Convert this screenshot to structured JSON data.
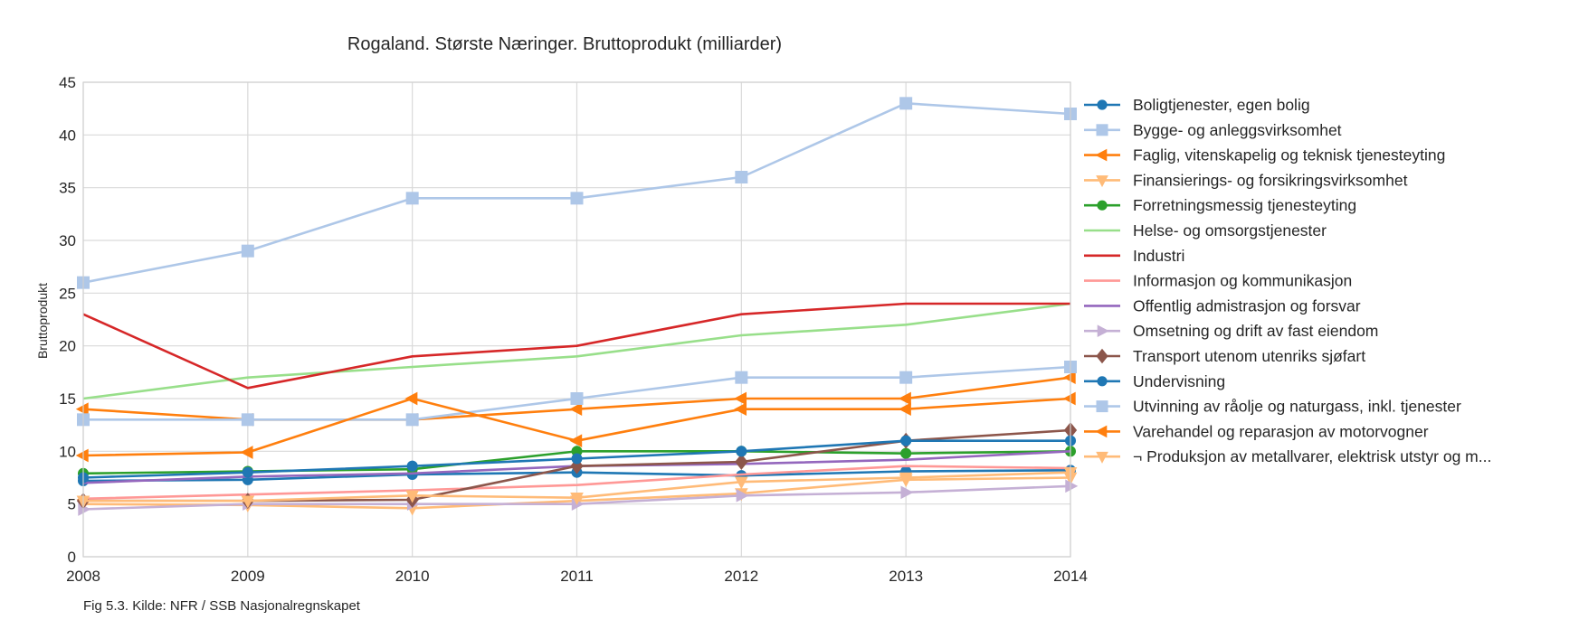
{
  "chart_data": {
    "type": "line",
    "title": "Rogaland. Største Næringer. Bruttoprodukt (milliarder)",
    "xlabel": "",
    "ylabel": "Bruttoprodukt",
    "caption": "Fig 5.3. Kilde: NFR / SSB Nasjonalregnskapet",
    "x": [
      2008,
      2009,
      2010,
      2011,
      2012,
      2013,
      2014
    ],
    "x_ticks": [
      "2008",
      "2009",
      "2010",
      "2011",
      "2012",
      "2013",
      "2014"
    ],
    "xlim": [
      2008,
      2014
    ],
    "ylim": [
      0,
      45
    ],
    "y_ticks": [
      0,
      5,
      10,
      15,
      20,
      25,
      30,
      35,
      40,
      45
    ],
    "grid": true,
    "legend_position": "right",
    "series": [
      {
        "name": "Boligtjenester, egen bolig",
        "color": "#1f77b4",
        "marker": "circle",
        "values": [
          7.2,
          7.3,
          7.8,
          8.0,
          7.7,
          8.1,
          8.2
        ]
      },
      {
        "name": "Bygge- og anleggsvirksomhet",
        "color": "#aec7e8",
        "marker": "square",
        "values": [
          26,
          29,
          34,
          34,
          36,
          43,
          42
        ]
      },
      {
        "name": "Faglig, vitenskapelig og teknisk tjenesteyting",
        "color": "#ff7f0e",
        "marker": "triangle-left",
        "values": [
          14,
          13,
          13,
          14,
          15,
          15,
          17
        ]
      },
      {
        "name": "Finansierings- og forsikringsvirksomhet",
        "color": "#ffbb78",
        "marker": "triangle-down",
        "values": [
          5.0,
          4.9,
          4.6,
          5.3,
          6.0,
          7.3,
          7.5
        ]
      },
      {
        "name": "Forretningsmessig tjenesteyting",
        "color": "#2ca02c",
        "marker": "circle",
        "values": [
          7.9,
          8.1,
          8.3,
          10,
          10,
          9.8,
          10
        ]
      },
      {
        "name": "Helse- og omsorgstjenester",
        "color": "#98df8a",
        "marker": "none",
        "values": [
          15,
          17,
          18,
          19,
          21,
          22,
          24
        ]
      },
      {
        "name": "Industri",
        "color": "#d62728",
        "marker": "none",
        "values": [
          23,
          16,
          19,
          20,
          23,
          24,
          24
        ]
      },
      {
        "name": "Informasjon og kommunikasjon",
        "color": "#ff9896",
        "marker": "none",
        "values": [
          5.5,
          5.9,
          6.3,
          6.8,
          7.8,
          8.6,
          8.4
        ]
      },
      {
        "name": "Offentlig admistrasjon og forsvar",
        "color": "#9467bd",
        "marker": "none",
        "values": [
          7.0,
          7.6,
          7.9,
          8.6,
          8.8,
          9.2,
          10
        ]
      },
      {
        "name": "Omsetning og drift av fast eiendom",
        "color": "#c5b0d5",
        "marker": "triangle-right",
        "values": [
          4.5,
          5.0,
          5.0,
          5.0,
          5.8,
          6.1,
          6.7
        ]
      },
      {
        "name": "Transport utenom utenriks sjøfart",
        "color": "#8c564b",
        "marker": "diamond",
        "values": [
          5.3,
          5.3,
          5.4,
          8.6,
          9.0,
          11,
          12
        ]
      },
      {
        "name": "Undervisning",
        "color": "#1f77b4",
        "marker": "circle",
        "values": [
          7.5,
          8.0,
          8.6,
          9.3,
          10,
          11,
          11
        ]
      },
      {
        "name": "Utvinning av råolje og naturgass, inkl. tjenester",
        "color": "#aec7e8",
        "marker": "square",
        "values": [
          13,
          13,
          13,
          15,
          17,
          17,
          18
        ]
      },
      {
        "name": "Varehandel og reparasjon av motorvogner",
        "color": "#ff7f0e",
        "marker": "triangle-left",
        "values": [
          9.6,
          9.9,
          15,
          11,
          14,
          14,
          15
        ]
      },
      {
        "name": "¬ Produksjon av metallvarer, elektrisk utstyr og m...",
        "color": "#ffbb78",
        "marker": "triangle-down",
        "values": [
          5.3,
          5.3,
          5.8,
          5.6,
          7.1,
          7.5,
          8.0
        ]
      }
    ]
  }
}
